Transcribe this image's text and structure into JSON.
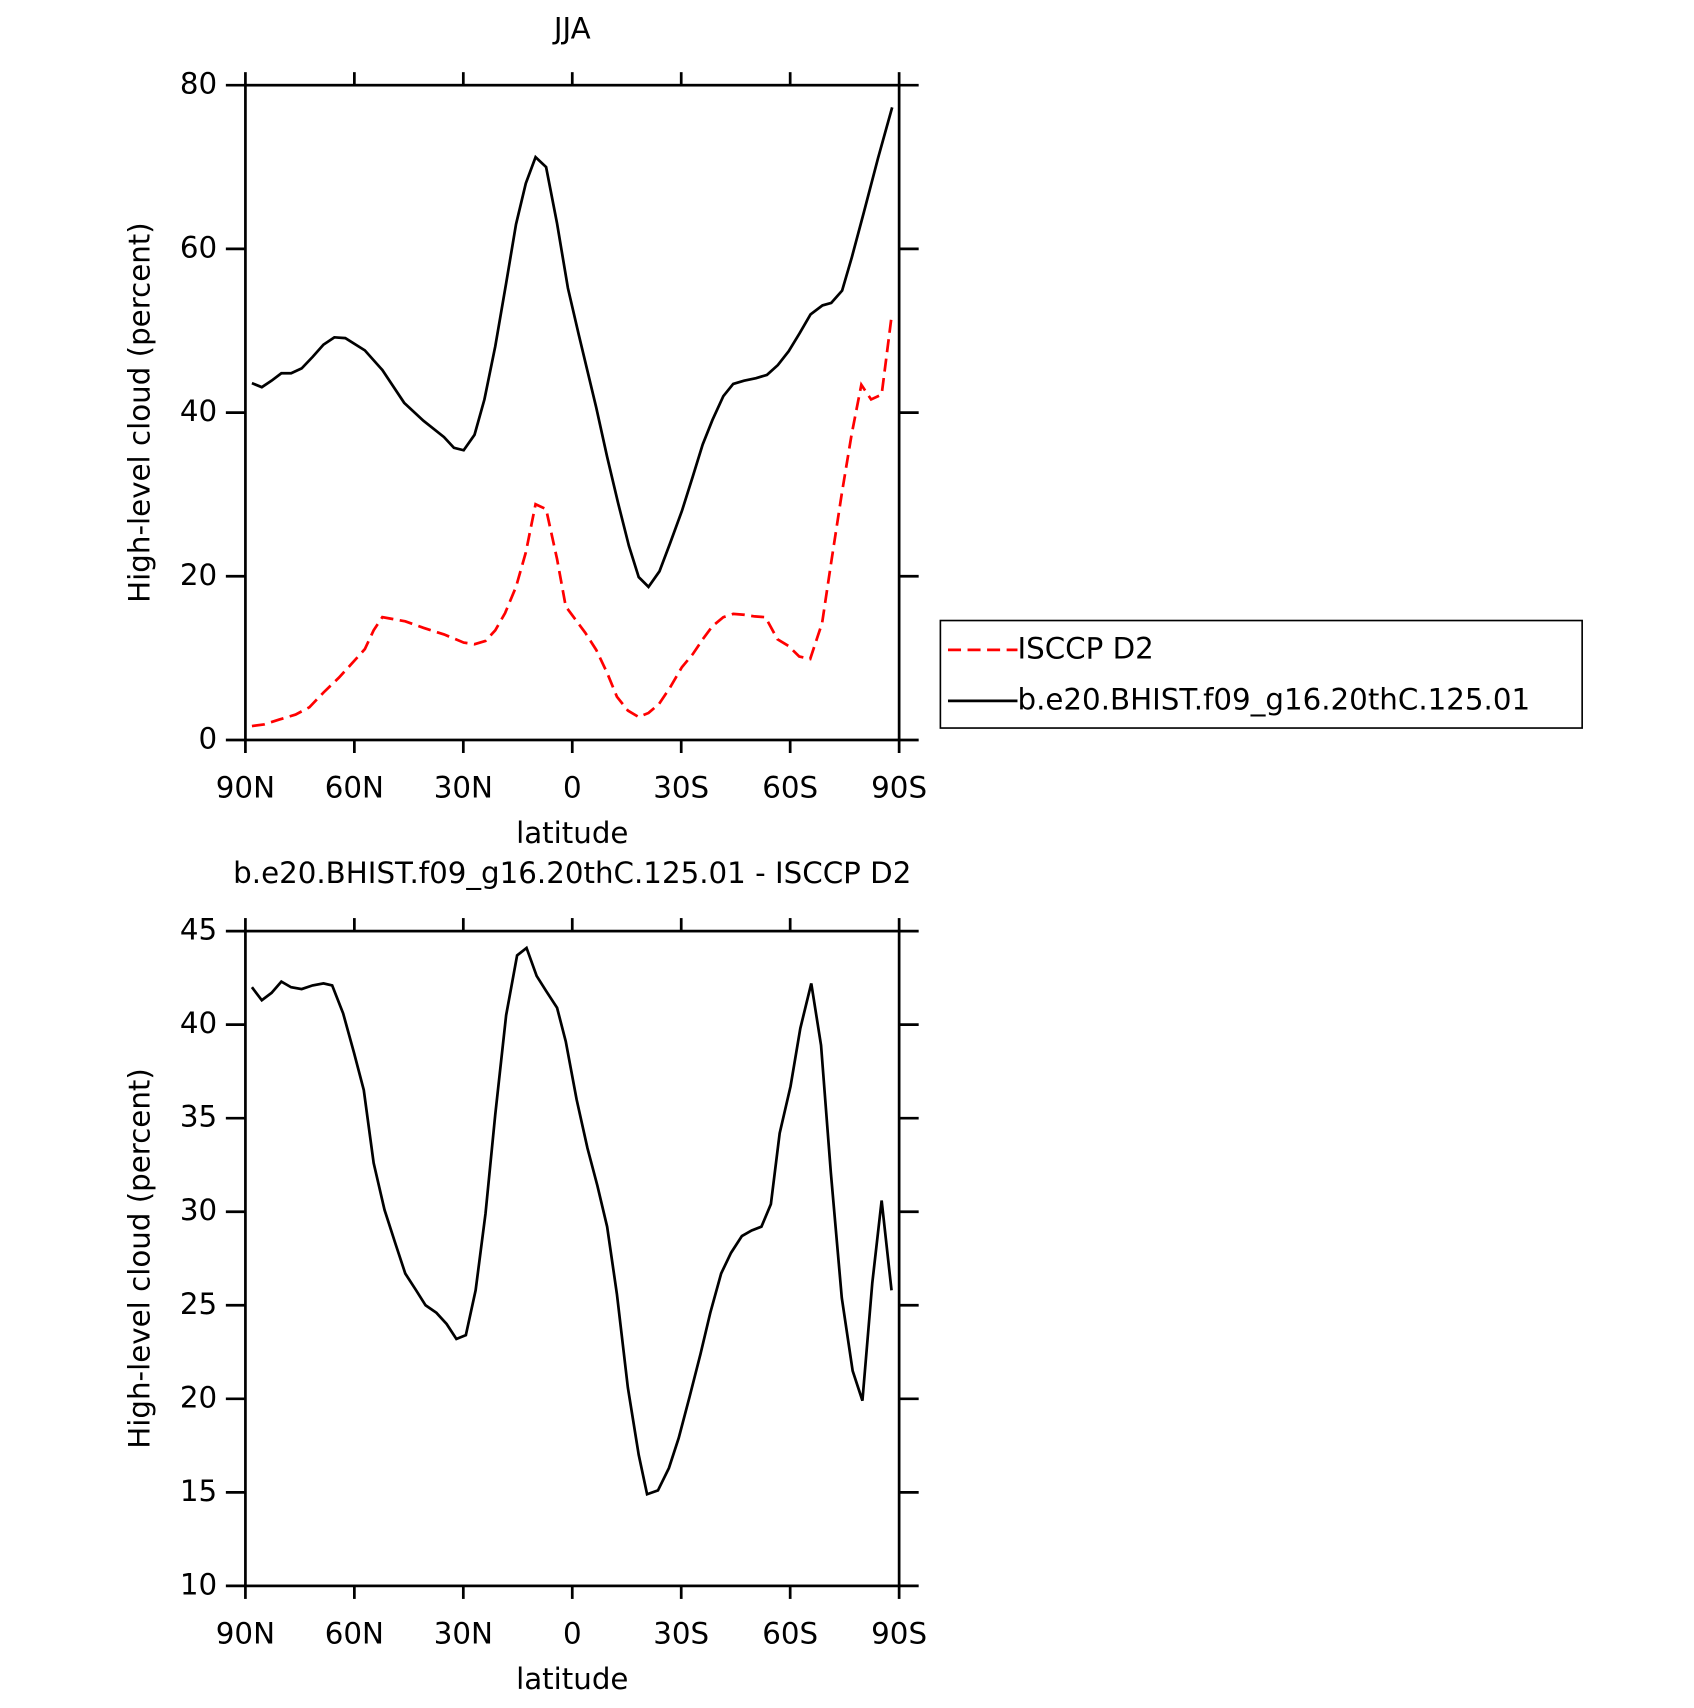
{
  "chart_data": [
    {
      "type": "line",
      "title": "JJA",
      "xlabel": "latitude",
      "ylabel": "High-level cloud (percent)",
      "xlim": [
        90,
        -90
      ],
      "xticks": [
        {
          "value": 90,
          "label": "90N"
        },
        {
          "value": 60,
          "label": "60N"
        },
        {
          "value": 30,
          "label": "30N"
        },
        0,
        {
          "value": -30,
          "label": "30S"
        },
        {
          "value": -60,
          "label": "60S"
        },
        {
          "value": -90,
          "label": "90S"
        }
      ],
      "ylim": [
        0,
        80
      ],
      "yticks": [
        0,
        20,
        40,
        60,
        80
      ],
      "legend_position": "right",
      "series": [
        {
          "name": "ISCCP D2",
          "color": "#ff0000",
          "line_style": "dashed",
          "x": [
            88.2,
            84.9,
            80.7,
            76.2,
            72.4,
            68.5,
            64.3,
            61.0,
            57.1,
            54.7,
            52.3,
            46.0,
            41.0,
            35.3,
            29.9,
            26.9,
            23.9,
            21.2,
            18.5,
            15.5,
            12.8,
            10.1,
            7.2,
            4.2,
            1.8,
            -3.6,
            -6.6,
            -9.6,
            -12.3,
            -15.3,
            -18.3,
            -21.0,
            -23.9,
            -26.9,
            -30.2,
            -33.2,
            -35.9,
            -38.6,
            -41.6,
            -44.3,
            -47.3,
            -50.2,
            -53.2,
            -56.5,
            -59.5,
            -62.5,
            -65.5,
            -68.8,
            -71.2,
            -74.2,
            -76.9,
            -79.6,
            -82.3,
            -85.2,
            -87.9
          ],
          "values": [
            1.7,
            1.9,
            2.5,
            3.1,
            4.0,
            5.8,
            7.6,
            9.2,
            11.1,
            13.4,
            15.0,
            14.5,
            13.7,
            12.9,
            11.9,
            11.7,
            12.1,
            13.4,
            15.5,
            18.7,
            22.9,
            28.8,
            28.2,
            22.1,
            16.3,
            13.1,
            11.0,
            8.2,
            5.3,
            3.6,
            2.8,
            3.3,
            4.4,
            6.4,
            8.9,
            10.5,
            12.3,
            13.9,
            15.0,
            15.4,
            15.3,
            15.1,
            15.0,
            12.3,
            11.5,
            10.2,
            9.9,
            14.3,
            21.4,
            30.1,
            37.3,
            43.4,
            41.6,
            42.2,
            51.7
          ]
        },
        {
          "name": "b.e20.BHIST.f09_g16.20thC.125.01",
          "color": "#000000",
          "line_style": "solid",
          "x": [
            88.2,
            85.5,
            82.8,
            80.1,
            77.4,
            74.5,
            71.5,
            68.5,
            65.5,
            62.5,
            57.1,
            52.3,
            46.3,
            41.0,
            35.3,
            32.6,
            29.9,
            26.9,
            24.2,
            21.2,
            18.2,
            15.5,
            12.8,
            10.1,
            7.2,
            4.2,
            1.2,
            -1.8,
            -6.6,
            -9.6,
            -12.6,
            -15.6,
            -18.3,
            -21.0,
            -24.0,
            -26.9,
            -30.2,
            -33.2,
            -35.9,
            -38.6,
            -41.6,
            -44.3,
            -47.3,
            -50.6,
            -53.6,
            -56.6,
            -59.6,
            -62.6,
            -65.6,
            -68.9,
            -71.3,
            -74.3,
            -77.0,
            -80.3,
            -84.2,
            -88.1
          ],
          "values": [
            43.6,
            43.1,
            43.9,
            44.8,
            44.8,
            45.4,
            46.8,
            48.3,
            49.2,
            49.1,
            47.6,
            45.2,
            41.2,
            39.0,
            37.0,
            35.7,
            35.4,
            37.3,
            41.6,
            48.1,
            55.8,
            63.0,
            68.0,
            71.2,
            70.0,
            63.1,
            55.2,
            49.5,
            40.6,
            34.6,
            29.0,
            23.7,
            19.9,
            18.7,
            20.6,
            24.0,
            28.0,
            32.2,
            36.1,
            39.1,
            42.0,
            43.5,
            43.9,
            44.2,
            44.6,
            45.8,
            47.5,
            49.7,
            52.0,
            53.1,
            53.4,
            54.9,
            59.0,
            64.5,
            71.1,
            77.3
          ]
        }
      ]
    },
    {
      "type": "line",
      "title": "b.e20.BHIST.f09_g16.20thC.125.01 - ISCCP D2",
      "xlabel": "latitude",
      "ylabel": "High-level cloud (percent)",
      "xlim": [
        90,
        -90
      ],
      "xticks": [
        {
          "value": 90,
          "label": "90N"
        },
        {
          "value": 60,
          "label": "60N"
        },
        {
          "value": 30,
          "label": "30N"
        },
        0,
        {
          "value": -30,
          "label": "30S"
        },
        {
          "value": -60,
          "label": "60S"
        },
        {
          "value": -90,
          "label": "90S"
        }
      ],
      "ylim": [
        10,
        45
      ],
      "yticks": [
        10,
        15,
        20,
        25,
        30,
        35,
        40,
        45
      ],
      "series": [
        {
          "color": "#000000",
          "line_style": "solid",
          "x": [
            88.2,
            85.5,
            82.8,
            80.1,
            77.4,
            74.5,
            71.5,
            68.5,
            66.1,
            63.1,
            60.1,
            57.4,
            54.7,
            51.7,
            48.7,
            46.0,
            43.0,
            40.4,
            37.4,
            34.6,
            31.9,
            29.3,
            26.6,
            23.9,
            21.2,
            18.2,
            15.2,
            12.6,
            9.8,
            7.2,
            4.2,
            1.8,
            -1.2,
            -4.2,
            -6.9,
            -9.6,
            -12.3,
            -15.3,
            -18.3,
            -20.6,
            -23.6,
            -26.6,
            -29.3,
            -32.3,
            -35.3,
            -38.0,
            -41.0,
            -43.7,
            -46.7,
            -49.4,
            -52.1,
            -54.7,
            -57.1,
            -60.1,
            -62.8,
            -65.8,
            -68.5,
            -71.2,
            -74.2,
            -77.2,
            -79.9,
            -82.6,
            -85.2,
            -87.9
          ],
          "values": [
            42.0,
            41.3,
            41.7,
            42.3,
            42.0,
            41.9,
            42.1,
            42.2,
            42.1,
            40.6,
            38.5,
            36.5,
            32.6,
            30.1,
            28.3,
            26.7,
            25.8,
            25.0,
            24.6,
            24.0,
            23.2,
            23.4,
            25.8,
            29.9,
            35.2,
            40.5,
            43.7,
            44.1,
            42.6,
            41.8,
            40.9,
            39.1,
            36.0,
            33.4,
            31.4,
            29.2,
            25.6,
            20.6,
            17.0,
            14.9,
            15.1,
            16.3,
            17.9,
            20.1,
            22.4,
            24.6,
            26.7,
            27.8,
            28.7,
            29.0,
            29.2,
            30.4,
            34.2,
            36.7,
            39.8,
            42.2,
            38.9,
            32.1,
            25.4,
            21.5,
            19.9,
            26.2,
            30.6,
            25.8
          ]
        }
      ]
    }
  ]
}
